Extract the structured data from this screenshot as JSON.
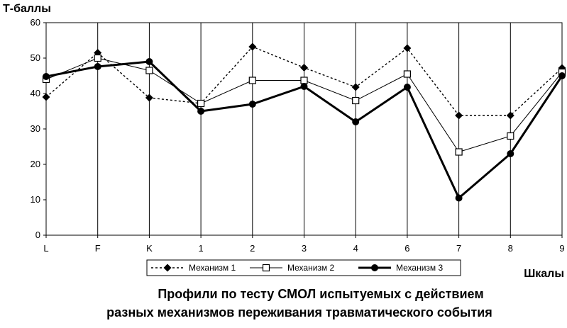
{
  "chart_data": {
    "type": "line",
    "ylabel": "Т-баллы",
    "xlabel": "Шкалы",
    "title_lines": [
      "Профили по тесту СМОЛ испытуемых с действием",
      "разных механизмов переживания травматического события"
    ],
    "categories": [
      "L",
      "F",
      "K",
      "1",
      "2",
      "3",
      "4",
      "6",
      "7",
      "8",
      "9"
    ],
    "ylim": [
      0,
      60
    ],
    "yticks": [
      "0",
      "10",
      "20",
      "30",
      "40",
      "50",
      "60"
    ],
    "grid": "vertical",
    "legend_position": "bottom",
    "series": [
      {
        "name": "Механизм 1",
        "marker": "diamond",
        "line": "dotted",
        "values": [
          39,
          51.5,
          38.8,
          37.2,
          53.2,
          47.3,
          41.8,
          52.8,
          33.8,
          33.8,
          47.2
        ]
      },
      {
        "name": "Механизм 2",
        "marker": "square",
        "line": "thin",
        "values": [
          44,
          50,
          46.5,
          37.2,
          43.7,
          43.7,
          38,
          45.5,
          23.5,
          28,
          46
        ]
      },
      {
        "name": "Механизм 3",
        "marker": "circle",
        "line": "thick",
        "values": [
          44.8,
          47.6,
          49,
          35,
          37,
          42,
          32,
          41.8,
          10.5,
          23,
          45
        ]
      }
    ]
  },
  "colors": {
    "line": "#000000",
    "grid": "#000000",
    "background": "#ffffff"
  }
}
